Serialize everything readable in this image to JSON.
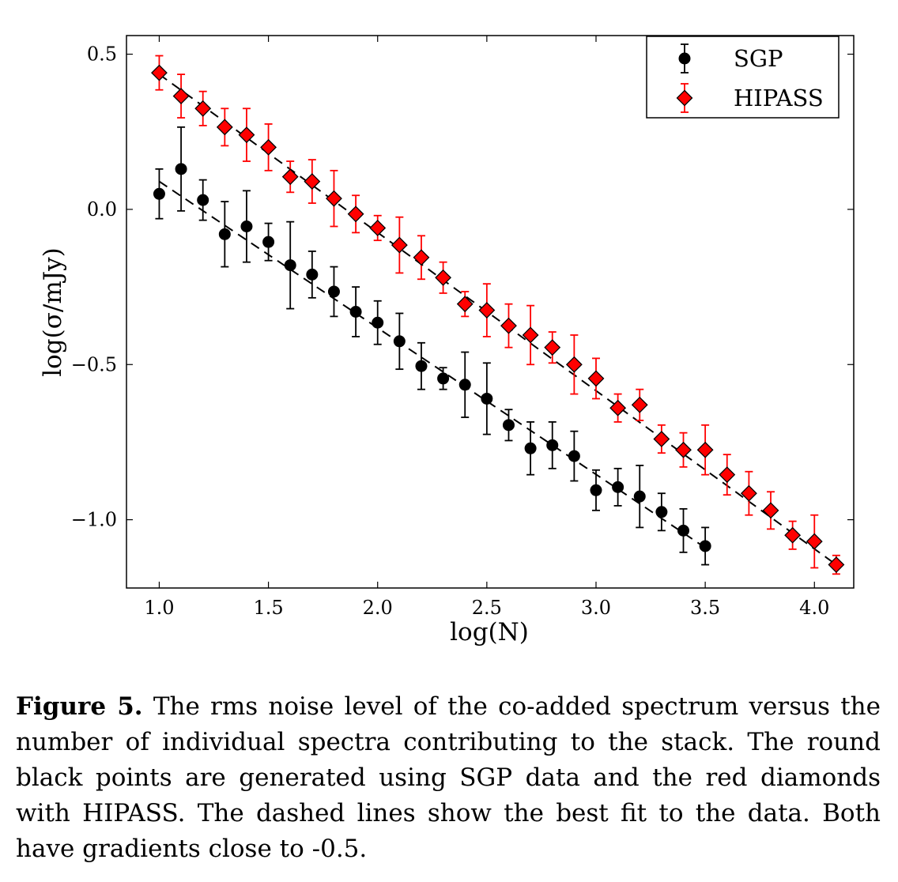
{
  "chart_data": {
    "type": "scatter",
    "xlabel": "log(N)",
    "ylabel": "log(σ/mJy)",
    "xlim": [
      0.85,
      4.18
    ],
    "ylim": [
      -1.22,
      0.56
    ],
    "xticks": [
      1.0,
      1.5,
      2.0,
      2.5,
      3.0,
      3.5,
      4.0
    ],
    "xtick_labels": [
      "1.0",
      "1.5",
      "2.0",
      "2.5",
      "3.0",
      "3.5",
      "4.0"
    ],
    "yticks": [
      0.5,
      0.0,
      -0.5,
      -1.0
    ],
    "ytick_labels": [
      "0.5",
      "0.0",
      "−0.5",
      "−1.0"
    ],
    "grid": false,
    "legend": "top-right",
    "series": [
      {
        "name": "SGP",
        "color": "#000000",
        "marker": "circle",
        "x": [
          1.0,
          1.1,
          1.2,
          1.3,
          1.4,
          1.5,
          1.6,
          1.7,
          1.8,
          1.9,
          2.0,
          2.1,
          2.2,
          2.3,
          2.4,
          2.5,
          2.6,
          2.7,
          2.8,
          2.9,
          3.0,
          3.1,
          3.2,
          3.3,
          3.4,
          3.5
        ],
        "y": [
          0.05,
          0.13,
          0.03,
          -0.08,
          -0.055,
          -0.105,
          -0.18,
          -0.21,
          -0.265,
          -0.33,
          -0.365,
          -0.425,
          -0.505,
          -0.545,
          -0.565,
          -0.61,
          -0.695,
          -0.77,
          -0.76,
          -0.795,
          -0.905,
          -0.895,
          -0.925,
          -0.975,
          -1.035,
          -1.085
        ],
        "err": [
          0.08,
          0.135,
          0.065,
          0.105,
          0.115,
          0.06,
          0.14,
          0.075,
          0.08,
          0.08,
          0.07,
          0.09,
          0.075,
          0.035,
          0.105,
          0.115,
          0.05,
          0.085,
          0.075,
          0.08,
          0.065,
          0.06,
          0.1,
          0.06,
          0.07,
          0.06
        ],
        "fit": {
          "x": [
            1.0,
            3.5
          ],
          "y": [
            0.09,
            -1.09
          ]
        }
      },
      {
        "name": "HIPASS",
        "color": "#ff0000",
        "marker": "diamond",
        "x": [
          1.0,
          1.1,
          1.2,
          1.3,
          1.4,
          1.5,
          1.6,
          1.7,
          1.8,
          1.9,
          2.0,
          2.1,
          2.2,
          2.3,
          2.4,
          2.5,
          2.6,
          2.7,
          2.8,
          2.9,
          3.0,
          3.1,
          3.2,
          3.3,
          3.4,
          3.5,
          3.6,
          3.7,
          3.8,
          3.9,
          4.0,
          4.1
        ],
        "y": [
          0.44,
          0.365,
          0.325,
          0.265,
          0.24,
          0.2,
          0.105,
          0.09,
          0.035,
          -0.015,
          -0.06,
          -0.115,
          -0.155,
          -0.22,
          -0.305,
          -0.325,
          -0.375,
          -0.405,
          -0.445,
          -0.5,
          -0.545,
          -0.64,
          -0.63,
          -0.74,
          -0.775,
          -0.775,
          -0.855,
          -0.915,
          -0.97,
          -1.05,
          -1.07,
          -1.145
        ],
        "err": [
          0.055,
          0.07,
          0.055,
          0.06,
          0.085,
          0.075,
          0.05,
          0.07,
          0.09,
          0.06,
          0.04,
          0.09,
          0.07,
          0.05,
          0.04,
          0.085,
          0.07,
          0.095,
          0.05,
          0.095,
          0.065,
          0.045,
          0.05,
          0.045,
          0.055,
          0.08,
          0.065,
          0.07,
          0.06,
          0.045,
          0.085,
          0.03
        ],
        "fit": {
          "x": [
            1.0,
            4.1
          ],
          "y": [
            0.435,
            -1.145
          ]
        }
      }
    ]
  },
  "caption": {
    "lead": "Figure 5.",
    "text": " The rms noise level of the co-added spectrum versus the number of individual spectra contributing to the stack. The round black points are generated using SGP data and the red diamonds with HIPASS. The dashed lines show the best fit to the data. Both have gradients close to -0.5."
  }
}
